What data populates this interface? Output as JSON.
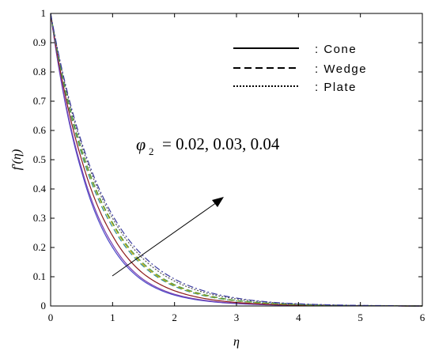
{
  "chart_data": {
    "type": "line",
    "xlabel": "η",
    "ylabel": "f′(η)",
    "xlim": [
      0,
      6
    ],
    "ylim": [
      0,
      1
    ],
    "xticks": [
      "0",
      "1",
      "2",
      "3",
      "4",
      "5",
      "6"
    ],
    "yticks": [
      "0",
      "0.1",
      "0.2",
      "0.3",
      "0.4",
      "0.5",
      "0.6",
      "0.7",
      "0.8",
      "0.9",
      "1"
    ],
    "grid": false,
    "legend": {
      "position": "top-right",
      "entries": [
        {
          "label": ": Cone",
          "style": "solid"
        },
        {
          "label": ": Wedge",
          "style": "dashed"
        },
        {
          "label": ": Plate",
          "style": "dotted"
        }
      ]
    },
    "annotation": {
      "symbol": "φ",
      "subscript": "2",
      "text": "= 0.02, 0.03, 0.04"
    },
    "x": [
      0,
      0.5,
      1,
      1.5,
      2,
      2.5,
      3,
      3.5,
      4,
      4.5,
      5,
      5.5,
      6
    ],
    "series": [
      {
        "color": "#4a4ac8",
        "style": "solid",
        "values": [
          1.0,
          0.46,
          0.2,
          0.085,
          0.037,
          0.017,
          0.008,
          0.004,
          0.002,
          0.001,
          0.0005,
          0.0002,
          0.0
        ]
      },
      {
        "color": "#7a3fb0",
        "style": "solid",
        "values": [
          1.0,
          0.47,
          0.21,
          0.09,
          0.04,
          0.019,
          0.009,
          0.0045,
          0.002,
          0.001,
          0.0005,
          0.0002,
          0.0
        ]
      },
      {
        "color": "#8b1a1a",
        "style": "solid",
        "values": [
          1.0,
          0.5,
          0.24,
          0.11,
          0.052,
          0.025,
          0.012,
          0.006,
          0.003,
          0.0015,
          0.0007,
          0.0003,
          0.0
        ]
      },
      {
        "color": "#2a8f8f",
        "style": "dashed",
        "values": [
          1.0,
          0.52,
          0.27,
          0.135,
          0.067,
          0.034,
          0.017,
          0.009,
          0.0045,
          0.002,
          0.001,
          0.0005,
          0.0
        ]
      },
      {
        "color": "#c8a800",
        "style": "dashed",
        "values": [
          1.0,
          0.53,
          0.28,
          0.14,
          0.07,
          0.036,
          0.018,
          0.009,
          0.0045,
          0.002,
          0.001,
          0.0005,
          0.0
        ]
      },
      {
        "color": "#4a9a4a",
        "style": "dashed",
        "values": [
          1.0,
          0.535,
          0.285,
          0.145,
          0.073,
          0.038,
          0.019,
          0.01,
          0.005,
          0.0025,
          0.0012,
          0.0006,
          0.0
        ]
      },
      {
        "color": "#555555",
        "style": "dotted",
        "values": [
          1.0,
          0.55,
          0.3,
          0.16,
          0.085,
          0.045,
          0.024,
          0.013,
          0.007,
          0.0035,
          0.0017,
          0.0008,
          0.0
        ]
      },
      {
        "color": "#3a3aa0",
        "style": "dashdot",
        "values": [
          1.0,
          0.56,
          0.31,
          0.17,
          0.092,
          0.05,
          0.027,
          0.014,
          0.0075,
          0.004,
          0.002,
          0.001,
          0.0
        ]
      }
    ]
  }
}
